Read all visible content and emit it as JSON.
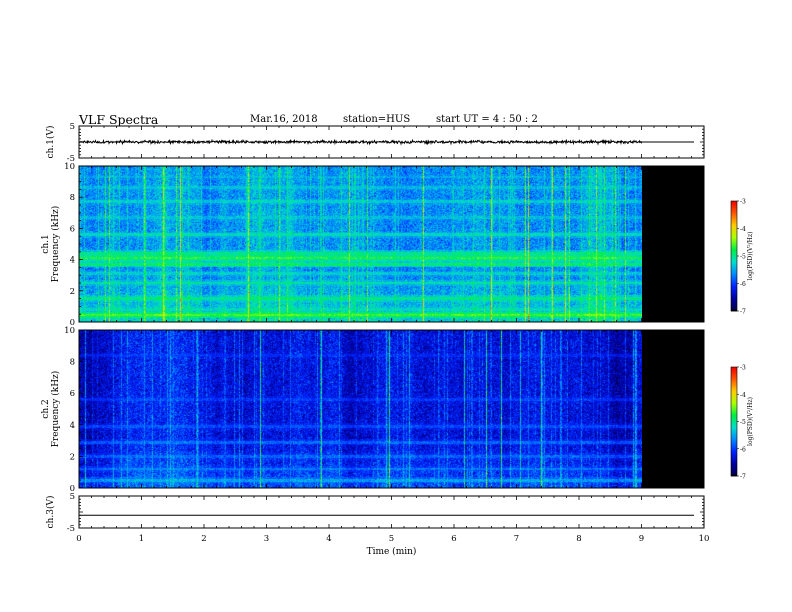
{
  "header": {
    "title": "VLF Spectra",
    "date": "Mar.16, 2018",
    "station": "station=HUS",
    "start": "start UT =  4 : 50 : 2"
  },
  "colors": {
    "background": "#ffffff",
    "spectrogram_floor": "#000000",
    "trace": "#000000",
    "colormap": [
      "#00004a",
      "#0000a0",
      "#0022ff",
      "#0088ff",
      "#00ddcc",
      "#00ee44",
      "#aaff00",
      "#ffcc00",
      "#ff5500",
      "#ee0000"
    ]
  },
  "chart_data": [
    {
      "type": "line",
      "panel": "ch1-waveform",
      "ylabel": "ch.1(V)",
      "ylim": [
        -5,
        5
      ],
      "yticks": [
        "5",
        "-5"
      ],
      "xlim": [
        0,
        10
      ],
      "data_extent_x": [
        0,
        9.0
      ],
      "series": [
        {
          "values_description_free": true,
          "mean": 0,
          "amplitude": 0.4
        }
      ]
    },
    {
      "type": "heatmap",
      "panel": "ch1-spectrogram",
      "ylabel_line1": "ch.1",
      "ylabel_line2": "Frequency (kHz)",
      "ylim": [
        0,
        10
      ],
      "yticks": [
        "0",
        "2",
        "4",
        "6",
        "8",
        "10"
      ],
      "xlim": [
        0,
        10
      ],
      "data_extent_x": [
        0,
        9.0
      ],
      "base_level": -5.6,
      "bands_khz": [
        {
          "f": 0.45,
          "level": -4.6
        },
        {
          "f": 0.8,
          "level": -5.2
        },
        {
          "f": 1.5,
          "level": -5.0
        },
        {
          "f": 2.5,
          "level": -5.1
        },
        {
          "f": 3.1,
          "level": -5.3
        },
        {
          "f": 3.7,
          "level": -4.9
        },
        {
          "f": 4.1,
          "level": -4.7
        },
        {
          "f": 4.4,
          "level": -5.0
        },
        {
          "f": 5.6,
          "level": -5.2
        },
        {
          "f": 6.7,
          "level": -5.4
        },
        {
          "f": 7.7,
          "level": -5.3
        },
        {
          "f": 8.6,
          "level": -5.4
        },
        {
          "f": 9.3,
          "level": -5.5
        }
      ],
      "colorbar": {
        "label": "log(PSD)(V²/Hz)",
        "range": [
          -7,
          -3
        ],
        "ticks": [
          "-3",
          "-4",
          "-5",
          "-6",
          "-7"
        ]
      }
    },
    {
      "type": "heatmap",
      "panel": "ch2-spectrogram",
      "ylabel_line1": "ch.2",
      "ylabel_line2": "Frequency (kHz)",
      "ylim": [
        0,
        10
      ],
      "yticks": [
        "0",
        "2",
        "4",
        "6",
        "8",
        "10"
      ],
      "xlim": [
        0,
        10
      ],
      "data_extent_x": [
        0,
        9.0
      ],
      "base_level": -6.4,
      "bands_khz": [
        {
          "f": 0.5,
          "level": -5.6
        },
        {
          "f": 1.2,
          "level": -5.8
        },
        {
          "f": 2.0,
          "level": -5.9
        },
        {
          "f": 2.9,
          "level": -5.9
        },
        {
          "f": 3.9,
          "level": -6.0
        },
        {
          "f": 5.6,
          "level": -6.1
        },
        {
          "f": 8.4,
          "level": -6.2
        }
      ],
      "colorbar": {
        "label": "log(PSD)(V²/Hz)",
        "range": [
          -7,
          -3
        ],
        "ticks": [
          "-3",
          "-4",
          "-5",
          "-6",
          "-7"
        ]
      }
    },
    {
      "type": "line",
      "panel": "ch3-waveform",
      "ylabel": "ch.3(V)",
      "ylim": [
        -5,
        5
      ],
      "yticks": [
        "5",
        "-5"
      ],
      "xlim": [
        0,
        10
      ],
      "series": [
        {
          "constant": -1.0
        }
      ]
    }
  ],
  "xaxis": {
    "label": "Time (min)",
    "ticks": [
      "0",
      "1",
      "2",
      "3",
      "4",
      "5",
      "6",
      "7",
      "8",
      "9",
      "10"
    ]
  }
}
